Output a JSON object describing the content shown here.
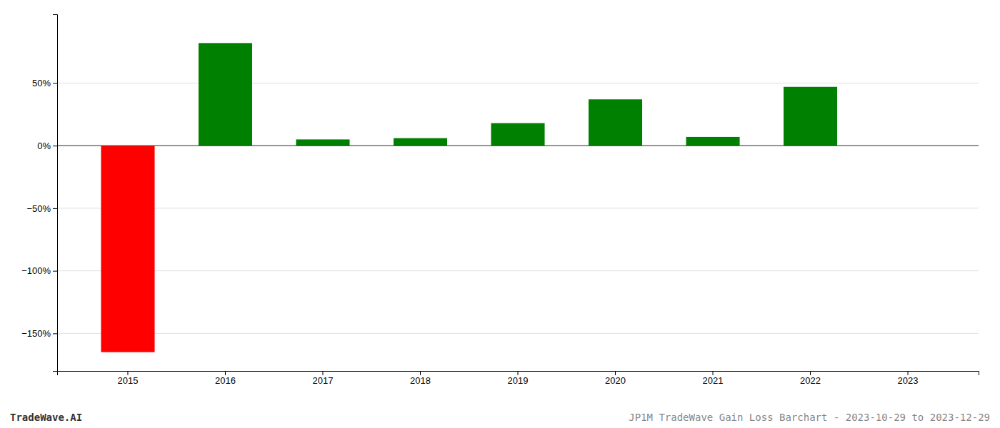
{
  "chart_data": {
    "type": "bar",
    "categories": [
      "2015",
      "2016",
      "2017",
      "2018",
      "2019",
      "2020",
      "2021",
      "2022",
      "2023"
    ],
    "values": [
      -1.65,
      0.82,
      0.05,
      0.06,
      0.18,
      0.37,
      0.07,
      0.47,
      0.0
    ],
    "colors": [
      "#ff0000",
      "#008000",
      "#008000",
      "#008000",
      "#008000",
      "#008000",
      "#008000",
      "#008000",
      "#008000"
    ],
    "ylim": [
      -1.8,
      1.05
    ],
    "yticks": [
      {
        "value": -1.5,
        "label": "−150%"
      },
      {
        "value": -1.0,
        "label": "−100%"
      },
      {
        "value": -0.5,
        "label": "−50%"
      },
      {
        "value": 0.0,
        "label": "0%"
      },
      {
        "value": 0.5,
        "label": "50%"
      }
    ],
    "grid": true,
    "annotations": [
      "TradeWave.AI",
      "JP1M TradeWave Gain Loss Barchart - 2023-10-29 to 2023-12-29"
    ]
  }
}
